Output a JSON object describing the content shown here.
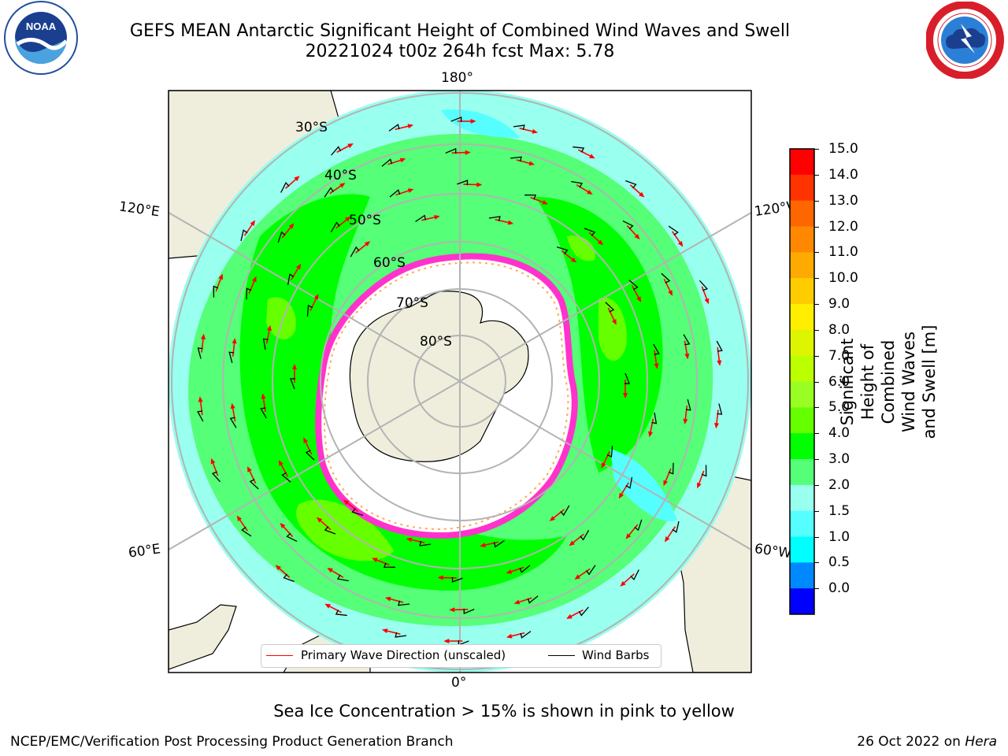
{
  "header": {
    "title_line1": "GEFS MEAN Antarctic Significant Height of Combined Wind Waves and Swell",
    "title_line2": "20221024 t00z 264h fcst   Max: 5.78"
  },
  "logos": {
    "left": {
      "text": "NOAA",
      "ring_text": "NATIONAL OCEANIC AND ATMOSPHERIC ADMINISTRATION · U.S. DEPARTMENT OF COMMERCE"
    },
    "right": {
      "ring_text": "NATIONAL WEATHER SERVICE"
    }
  },
  "map": {
    "longitude_labels": {
      "top": "180°",
      "bottom": "0°",
      "upper_left": "120°E",
      "upper_right": "120°W",
      "lower_left": "60°E",
      "lower_right": "60°W"
    },
    "latitude_labels": [
      "30°S",
      "40°S",
      "50°S",
      "60°S",
      "70°S",
      "80°S"
    ],
    "colors": {
      "land": "#efeedd",
      "sea_ice_no_data": "#ffffff",
      "grid": "#b3b3b3",
      "wave_arrow": "#ff0000",
      "wind_barb": "#000000",
      "sea_ice_pink": "#ff33cc",
      "sea_ice_orange": "#ffaa55"
    }
  },
  "colorbar": {
    "label": "Significant Height of Combined\nWind Waves and Swell [m]",
    "ticks": [
      "15.0",
      "14.0",
      "13.0",
      "12.0",
      "11.0",
      "10.0",
      "9.0",
      "8.0",
      "7.0",
      "6.0",
      "5.0",
      "4.0",
      "3.0",
      "2.0",
      "1.5",
      "1.0",
      "0.5",
      "0.0"
    ],
    "bands": [
      "#ff0000",
      "#ff3300",
      "#ff6600",
      "#ff8800",
      "#ffaa00",
      "#ffcc00",
      "#ffee00",
      "#ddf500",
      "#bbff00",
      "#99ff22",
      "#66ff00",
      "#00ff00",
      "#55ff77",
      "#99ffee",
      "#55ffff",
      "#00ffff",
      "#0088ff",
      "#0000ff"
    ]
  },
  "legend": {
    "primary_wave": "Primary Wave Direction (unscaled)",
    "wind_barbs": "Wind Barbs"
  },
  "notes": {
    "sea_ice": "Sea Ice Concentration > 15% is shown in pink to yellow"
  },
  "footer": {
    "left": "NCEP/EMC/Verification Post Processing Product Generation Branch",
    "date": "26 Oct 2022 on ",
    "machine": "Hera"
  }
}
